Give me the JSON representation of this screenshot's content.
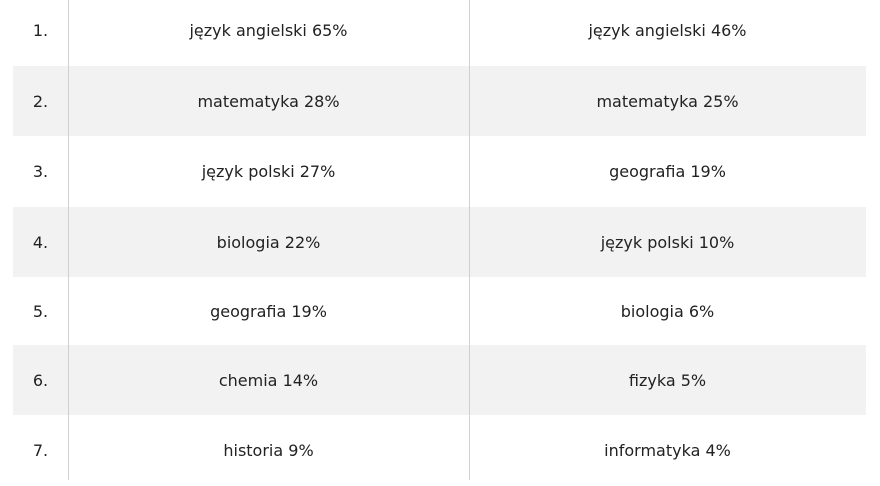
{
  "table": {
    "rows": [
      [
        "1.",
        "język angielski 65%",
        "język angielski 46%"
      ],
      [
        "2.",
        "matematyka 28%",
        "matematyka 25%"
      ],
      [
        "3.",
        "język polski 27%",
        "geografia 19%"
      ],
      [
        "4.",
        "biologia 22%",
        "język polski 10%"
      ],
      [
        "5.",
        "geografia 19%",
        "biologia 6%"
      ],
      [
        "6.",
        "chemia 14%",
        "fizyka 5%"
      ],
      [
        "7.",
        "historia 9%",
        "informatyka 4%"
      ]
    ]
  }
}
